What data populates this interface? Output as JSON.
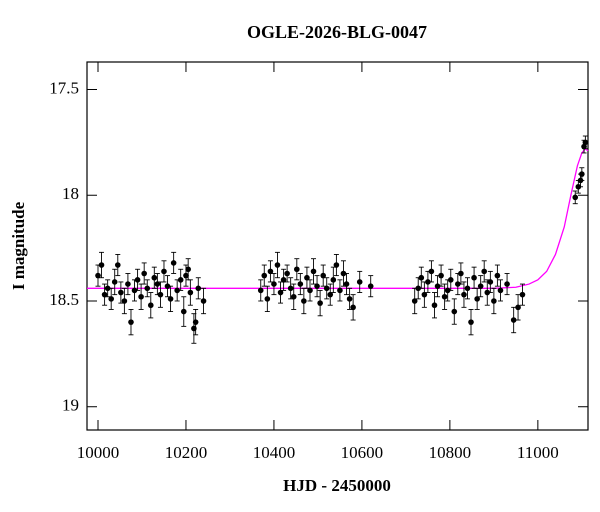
{
  "chart_data": {
    "type": "scatter",
    "title": "OGLE-2026-BLG-0047",
    "xlabel": "HJD - 2450000",
    "ylabel": "I magnitude",
    "x": [
      10000,
      10008,
      10015,
      10022,
      10030,
      10038,
      10045,
      10052,
      10060,
      10068,
      10075,
      10083,
      10090,
      10098,
      10105,
      10112,
      10120,
      10128,
      10135,
      10142,
      10150,
      10158,
      10165,
      10172,
      10180,
      10188,
      10195,
      10200,
      10210,
      10218,
      10222,
      10228,
      10240,
      10205,
      10370,
      10378,
      10385,
      10392,
      10400,
      10408,
      10415,
      10422,
      10430,
      10438,
      10445,
      10452,
      10460,
      10468,
      10475,
      10482,
      10490,
      10498,
      10505,
      10512,
      10520,
      10528,
      10535,
      10542,
      10550,
      10558,
      10565,
      10572,
      10580,
      10595,
      10620,
      10720,
      10728,
      10735,
      10742,
      10750,
      10758,
      10765,
      10772,
      10780,
      10788,
      10795,
      10802,
      10810,
      10818,
      10825,
      10832,
      10840,
      10848,
      10855,
      10862,
      10870,
      10878,
      10885,
      10892,
      10900,
      10908,
      10915,
      10930,
      10945,
      10955,
      10965,
      11085,
      11092,
      11097,
      11100,
      11105,
      11108
    ],
    "values": [
      18.38,
      18.33,
      18.47,
      18.44,
      18.49,
      18.41,
      18.33,
      18.46,
      18.5,
      18.42,
      18.6,
      18.45,
      18.4,
      18.48,
      18.37,
      18.44,
      18.52,
      18.39,
      18.42,
      18.47,
      18.36,
      18.43,
      18.49,
      18.32,
      18.45,
      18.4,
      18.55,
      18.38,
      18.46,
      18.63,
      18.6,
      18.44,
      18.5,
      18.35,
      18.45,
      18.38,
      18.49,
      18.36,
      18.42,
      18.33,
      18.46,
      18.4,
      18.37,
      18.44,
      18.48,
      18.35,
      18.42,
      18.5,
      18.39,
      18.45,
      18.36,
      18.43,
      18.51,
      18.38,
      18.44,
      18.47,
      18.4,
      18.33,
      18.45,
      18.37,
      18.42,
      18.49,
      18.53,
      18.41,
      18.43,
      18.5,
      18.44,
      18.39,
      18.47,
      18.41,
      18.36,
      18.52,
      18.43,
      18.38,
      18.48,
      18.45,
      18.4,
      18.55,
      18.42,
      18.37,
      18.47,
      18.44,
      18.6,
      18.39,
      18.49,
      18.43,
      18.36,
      18.46,
      18.41,
      18.5,
      18.38,
      18.45,
      18.42,
      18.59,
      18.53,
      18.47,
      18.01,
      17.96,
      17.93,
      17.9,
      17.77,
      17.75
    ],
    "errors": [
      0.05,
      0.06,
      0.05,
      0.04,
      0.05,
      0.06,
      0.05,
      0.05,
      0.06,
      0.05,
      0.06,
      0.05,
      0.05,
      0.06,
      0.05,
      0.04,
      0.06,
      0.05,
      0.05,
      0.06,
      0.05,
      0.05,
      0.06,
      0.05,
      0.05,
      0.05,
      0.07,
      0.05,
      0.06,
      0.07,
      0.06,
      0.05,
      0.06,
      0.05,
      0.05,
      0.05,
      0.06,
      0.05,
      0.05,
      0.06,
      0.05,
      0.05,
      0.04,
      0.05,
      0.06,
      0.05,
      0.05,
      0.06,
      0.05,
      0.05,
      0.06,
      0.05,
      0.06,
      0.05,
      0.05,
      0.05,
      0.06,
      0.05,
      0.05,
      0.06,
      0.05,
      0.05,
      0.06,
      0.05,
      0.05,
      0.06,
      0.05,
      0.05,
      0.06,
      0.05,
      0.05,
      0.06,
      0.05,
      0.05,
      0.06,
      0.05,
      0.05,
      0.06,
      0.05,
      0.05,
      0.06,
      0.05,
      0.06,
      0.05,
      0.05,
      0.05,
      0.05,
      0.06,
      0.05,
      0.06,
      0.05,
      0.05,
      0.05,
      0.06,
      0.06,
      0.05,
      0.03,
      0.03,
      0.03,
      0.03,
      0.03,
      0.03
    ],
    "color": "#000000",
    "model": {
      "x": [
        9975,
        10900,
        10950,
        10980,
        11000,
        11020,
        11040,
        11060,
        11075,
        11090,
        11100,
        11108,
        11114
      ],
      "values": [
        18.44,
        18.44,
        18.435,
        18.42,
        18.4,
        18.36,
        18.28,
        18.15,
        18.0,
        17.86,
        17.8,
        17.78,
        17.79
      ],
      "color": "#ff00ff"
    },
    "xlim": [
      9975,
      11114
    ],
    "ylim": [
      17.37,
      19.11
    ],
    "invert_y": true,
    "xticks": [
      10000,
      10200,
      10400,
      10600,
      10800,
      11000
    ],
    "yticks": [
      17.5,
      18,
      18.5,
      19
    ]
  }
}
